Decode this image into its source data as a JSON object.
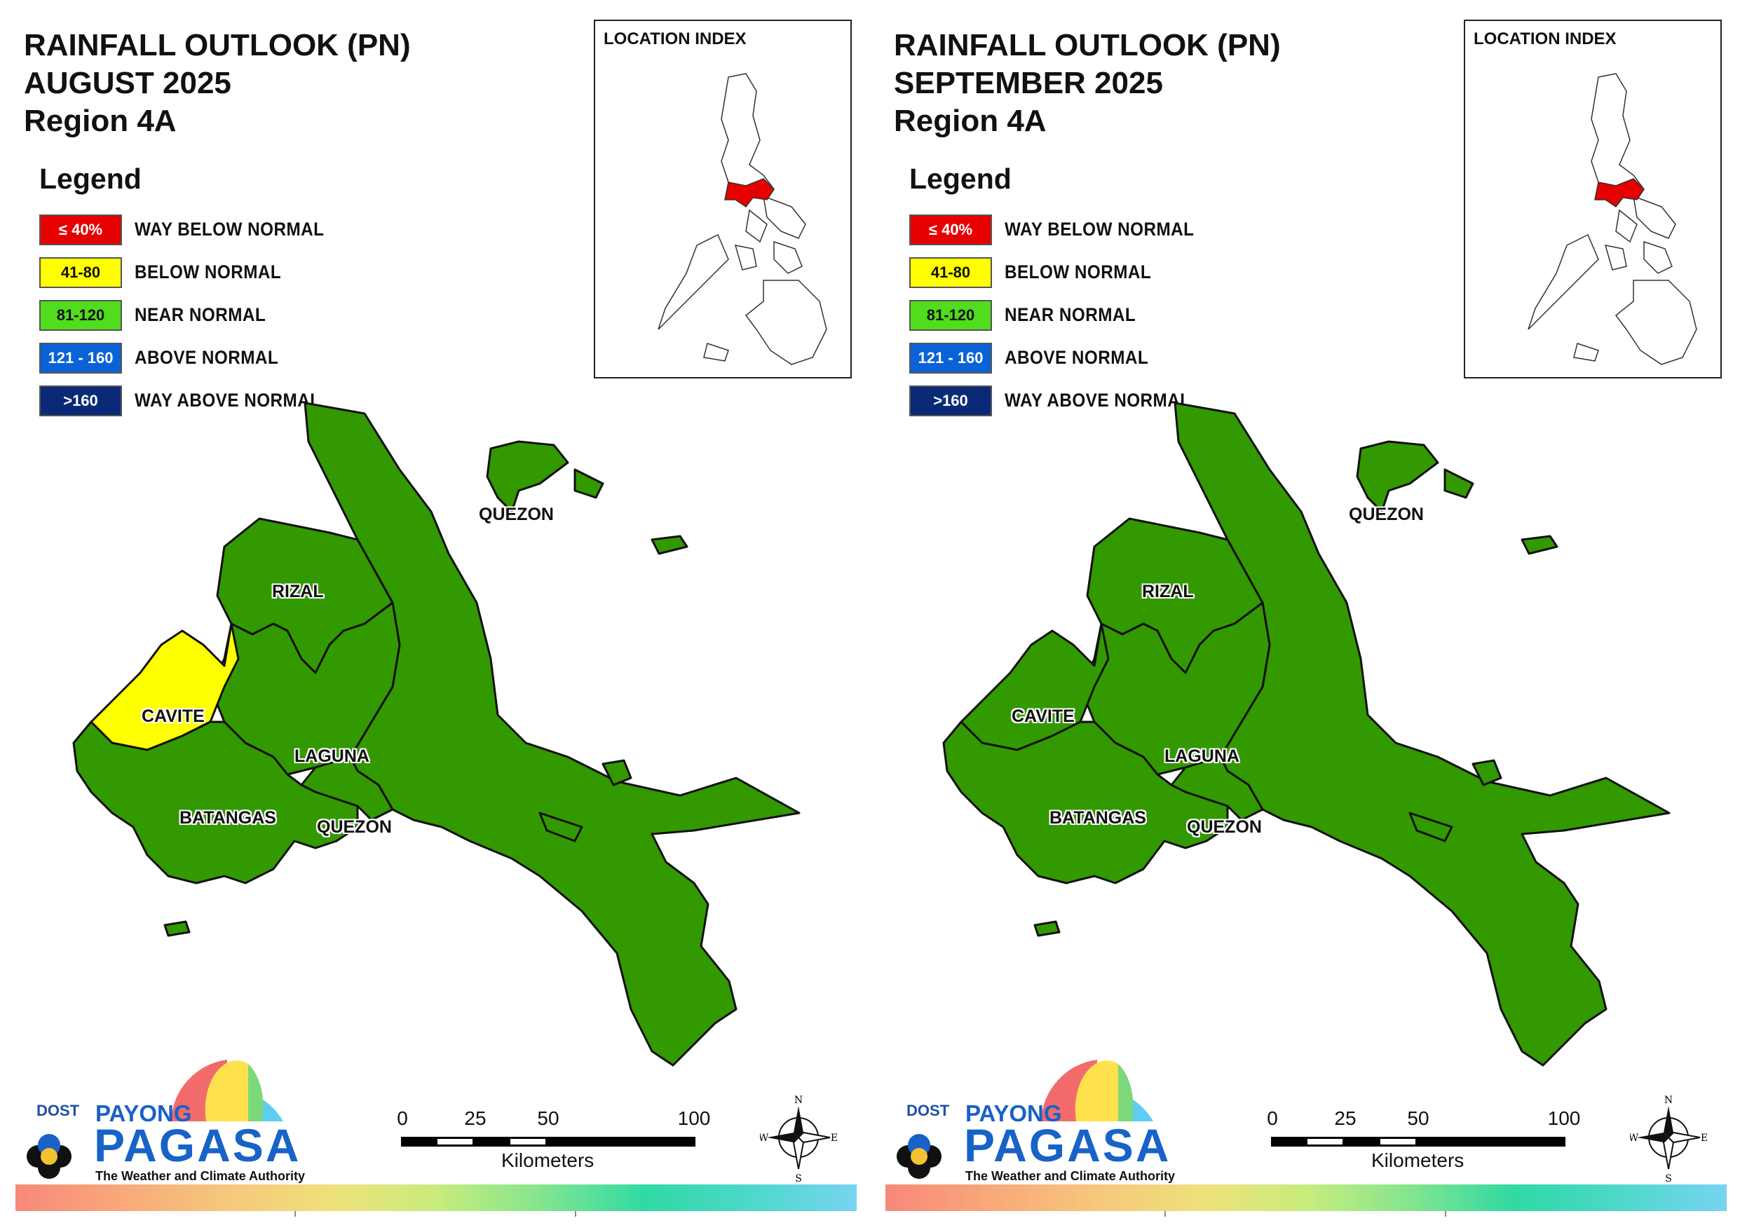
{
  "panels": [
    {
      "title_line1": "RAINFALL OUTLOOK (PN)",
      "title_line2": "AUGUST 2025",
      "title_line3": "Region 4A",
      "province_colors": {
        "cavite": "#ffff00",
        "other": "#339900"
      }
    },
    {
      "title_line1": "RAINFALL OUTLOOK (PN)",
      "title_line2": "SEPTEMBER 2025",
      "title_line3": "Region 4A",
      "province_colors": {
        "cavite": "#339900",
        "other": "#339900"
      }
    }
  ],
  "legend": {
    "title": "Legend",
    "items": [
      {
        "range": "≤ 40%",
        "label": "WAY BELOW NORMAL",
        "color": "#e60000",
        "text_color": "#ffffff"
      },
      {
        "range": "41-80",
        "label": "BELOW NORMAL",
        "color": "#ffff00",
        "text_color": "#111111"
      },
      {
        "range": "81-120",
        "label": "NEAR NORMAL",
        "color": "#4fdd1d",
        "text_color": "#111111"
      },
      {
        "range": "121 - 160",
        "label": "ABOVE NORMAL",
        "color": "#0a63d6",
        "text_color": "#ffffff"
      },
      {
        "range": ">160",
        "label": "WAY ABOVE NORMAL",
        "color": "#0a2a78",
        "text_color": "#ffffff"
      }
    ]
  },
  "location_index": {
    "title": "LOCATION INDEX",
    "highlight_color": "#e60000"
  },
  "provinces": {
    "quezon_north": "QUEZON",
    "rizal": "RIZAL",
    "cavite": "CAVITE",
    "laguna": "LAGUNA",
    "batangas": "BATANGAS",
    "quezon_south": "QUEZON"
  },
  "logo": {
    "dost": "DOST",
    "payong": "PAYONG",
    "pagasa": "PAGASA",
    "tagline": "The Weather and Climate Authority"
  },
  "scale": {
    "ticks": [
      "0",
      "25",
      "50",
      "100"
    ],
    "units": "Kilometers"
  },
  "compass": {
    "n": "N",
    "s": "S",
    "e": "E",
    "w": "W"
  }
}
